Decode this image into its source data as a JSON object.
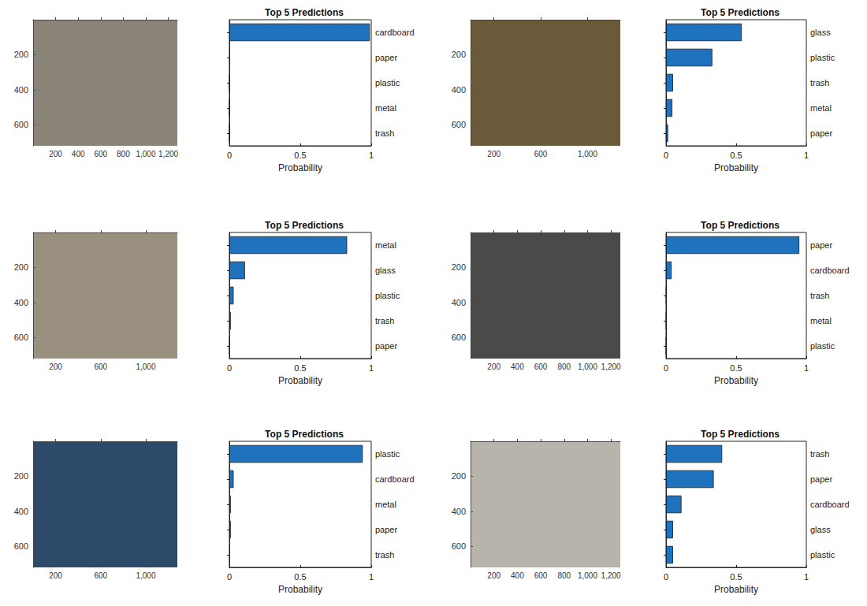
{
  "chart_data": [
    {
      "type": "image",
      "xlim": [
        0,
        1280
      ],
      "ylim": [
        0,
        720
      ],
      "xticks": [
        200,
        400,
        600,
        800,
        1000,
        1200
      ],
      "yticks": [
        200,
        400,
        600
      ],
      "color": "#8a8478"
    },
    {
      "type": "bar",
      "orientation": "horizontal",
      "title": "Top 5 Predictions",
      "xlabel": "Probability",
      "categories": [
        "cardboard",
        "paper",
        "plastic",
        "metal",
        "trash"
      ],
      "values": [
        0.99,
        0.005,
        0.002,
        0.001,
        0.001
      ],
      "xlim": [
        0,
        1
      ],
      "xticks": [
        0,
        0.5,
        1
      ],
      "color": "#1f72bd"
    },
    {
      "type": "image",
      "xlim": [
        0,
        1280
      ],
      "ylim": [
        0,
        720
      ],
      "xticks": [
        200,
        600,
        1000
      ],
      "yticks": [
        200,
        400,
        600
      ],
      "color": "#6b5a3a"
    },
    {
      "type": "bar",
      "orientation": "horizontal",
      "title": "Top 5 Predictions",
      "xlabel": "Probability",
      "categories": [
        "glass",
        "plastic",
        "trash",
        "metal",
        "paper"
      ],
      "values": [
        0.54,
        0.33,
        0.05,
        0.045,
        0.015
      ],
      "xlim": [
        0,
        1
      ],
      "xticks": [
        0,
        0.5,
        1
      ],
      "color": "#1f72bd"
    },
    {
      "type": "image",
      "xlim": [
        0,
        1280
      ],
      "ylim": [
        0,
        720
      ],
      "xticks": [
        200,
        600,
        1000
      ],
      "yticks": [
        200,
        400,
        600
      ],
      "color": "#9a9080"
    },
    {
      "type": "bar",
      "orientation": "horizontal",
      "title": "Top 5 Predictions",
      "xlabel": "Probability",
      "categories": [
        "metal",
        "glass",
        "plastic",
        "trash",
        "paper"
      ],
      "values": [
        0.83,
        0.11,
        0.03,
        0.01,
        0.003
      ],
      "xlim": [
        0,
        1
      ],
      "xticks": [
        0,
        0.5,
        1
      ],
      "color": "#1f72bd"
    },
    {
      "type": "image",
      "xlim": [
        0,
        1280
      ],
      "ylim": [
        0,
        720
      ],
      "xticks": [
        200,
        400,
        600,
        800,
        1000,
        1200
      ],
      "yticks": [
        200,
        400,
        600
      ],
      "color": "#4a4a48"
    },
    {
      "type": "bar",
      "orientation": "horizontal",
      "title": "Top 5 Predictions",
      "xlabel": "Probability",
      "categories": [
        "paper",
        "cardboard",
        "trash",
        "metal",
        "plastic"
      ],
      "values": [
        0.95,
        0.04,
        0.003,
        0.002,
        0.001
      ],
      "xlim": [
        0,
        1
      ],
      "xticks": [
        0,
        0.5,
        1
      ],
      "color": "#1f72bd"
    },
    {
      "type": "image",
      "xlim": [
        0,
        1280
      ],
      "ylim": [
        0,
        720
      ],
      "xticks": [
        200,
        600,
        1000
      ],
      "yticks": [
        200,
        400,
        600
      ],
      "color": "#2e4a6a"
    },
    {
      "type": "bar",
      "orientation": "horizontal",
      "title": "Top 5 Predictions",
      "xlabel": "Probability",
      "categories": [
        "plastic",
        "cardboard",
        "metal",
        "paper",
        "trash"
      ],
      "values": [
        0.94,
        0.03,
        0.01,
        0.01,
        0.005
      ],
      "xlim": [
        0,
        1
      ],
      "xticks": [
        0,
        0.5,
        1
      ],
      "color": "#1f72bd"
    },
    {
      "type": "image",
      "xlim": [
        0,
        1280
      ],
      "ylim": [
        0,
        720
      ],
      "xticks": [
        200,
        400,
        600,
        800,
        1000,
        1200
      ],
      "yticks": [
        200,
        400,
        600
      ],
      "color": "#b8b4ac"
    },
    {
      "type": "bar",
      "orientation": "horizontal",
      "title": "Top 5 Predictions",
      "xlabel": "Probability",
      "categories": [
        "trash",
        "paper",
        "cardboard",
        "glass",
        "plastic"
      ],
      "values": [
        0.4,
        0.34,
        0.11,
        0.05,
        0.05
      ],
      "xlim": [
        0,
        1
      ],
      "xticks": [
        0,
        0.5,
        1
      ],
      "color": "#1f72bd"
    }
  ]
}
